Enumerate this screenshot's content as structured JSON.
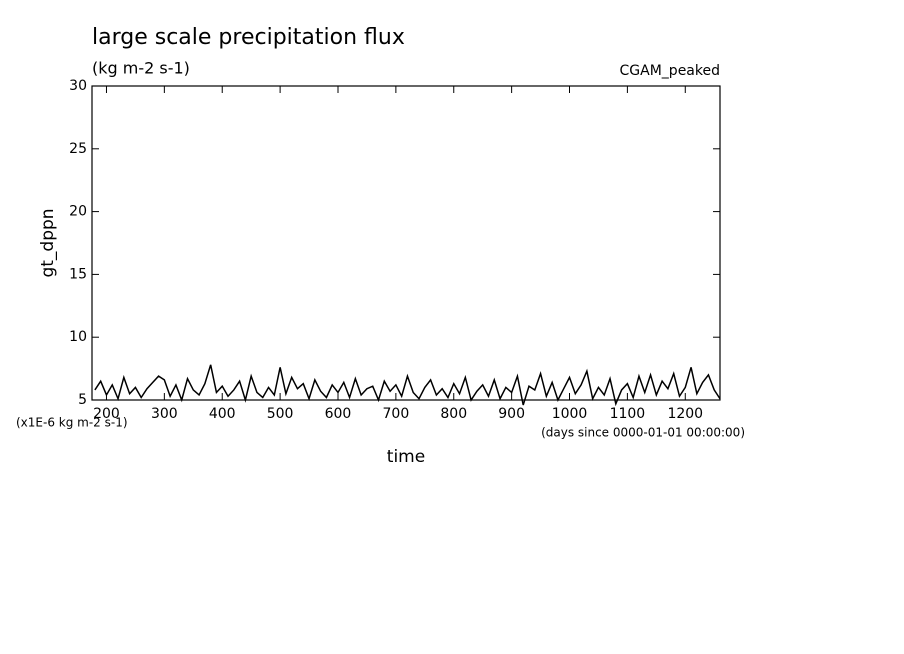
{
  "chart_data": {
    "type": "line",
    "title": "large scale precipitation flux",
    "subtitle": "(kg m-2 s-1)",
    "annotation": "CGAM_peaked",
    "y_label": "gt_dppn",
    "x_label": "time",
    "y_units": "(x1E-6 kg m-2 s-1)",
    "x_units": "(days since 0000-01-01 00:00:00)",
    "xlim": [
      175,
      1260
    ],
    "ylim": [
      5,
      30
    ],
    "xticks": [
      200,
      300,
      400,
      500,
      600,
      700,
      800,
      900,
      1000,
      1100,
      1200
    ],
    "yticks": [
      5,
      10,
      15,
      20,
      25,
      30
    ],
    "x": [
      180,
      190,
      200,
      210,
      220,
      230,
      240,
      250,
      260,
      270,
      280,
      290,
      300,
      310,
      320,
      330,
      340,
      350,
      360,
      370,
      380,
      390,
      400,
      410,
      420,
      430,
      440,
      450,
      460,
      470,
      480,
      490,
      500,
      510,
      520,
      530,
      540,
      550,
      560,
      570,
      580,
      590,
      600,
      610,
      620,
      630,
      640,
      650,
      660,
      670,
      680,
      690,
      700,
      710,
      720,
      730,
      740,
      750,
      760,
      770,
      780,
      790,
      800,
      810,
      820,
      830,
      840,
      850,
      860,
      870,
      880,
      890,
      900,
      910,
      920,
      930,
      940,
      950,
      960,
      970,
      980,
      990,
      1000,
      1010,
      1020,
      1030,
      1040,
      1050,
      1060,
      1070,
      1080,
      1090,
      1100,
      1110,
      1120,
      1130,
      1140,
      1150,
      1160,
      1170,
      1180,
      1190,
      1200,
      1210,
      1220,
      1230,
      1240,
      1250,
      1260
    ],
    "series": [
      {
        "name": "gt_dppn",
        "color": "#000000",
        "values": [
          5.8,
          6.5,
          5.4,
          6.2,
          5.1,
          6.8,
          5.5,
          6.0,
          5.2,
          5.9,
          6.4,
          6.9,
          6.6,
          5.3,
          6.2,
          5.0,
          6.7,
          5.8,
          5.4,
          6.3,
          7.8,
          5.6,
          6.1,
          5.3,
          5.8,
          6.5,
          5.0,
          6.9,
          5.6,
          5.2,
          6.0,
          5.4,
          7.6,
          5.5,
          6.8,
          5.9,
          6.3,
          5.1,
          6.6,
          5.7,
          5.2,
          6.2,
          5.6,
          6.4,
          5.2,
          6.7,
          5.4,
          5.9,
          6.1,
          5.0,
          6.5,
          5.7,
          6.2,
          5.3,
          6.9,
          5.6,
          5.1,
          6.0,
          6.6,
          5.4,
          5.9,
          5.2,
          6.3,
          5.5,
          6.8,
          5.0,
          5.7,
          6.2,
          5.3,
          6.6,
          5.1,
          6.0,
          5.6,
          6.9,
          4.6,
          6.1,
          5.8,
          7.1,
          5.3,
          6.4,
          5.0,
          5.9,
          6.8,
          5.5,
          6.2,
          7.3,
          5.1,
          6.0,
          5.4,
          6.7,
          4.7,
          5.8,
          6.3,
          5.2,
          6.9,
          5.6,
          7.0,
          5.4,
          6.5,
          5.9,
          7.1,
          5.3,
          6.0,
          7.6,
          5.5,
          6.4,
          7.0,
          5.8,
          5.1
        ]
      }
    ]
  }
}
